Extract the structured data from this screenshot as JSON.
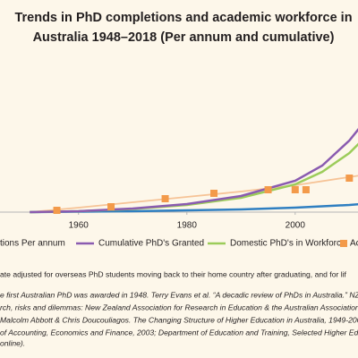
{
  "chart_data": {
    "type": "line",
    "title": [
      "Trends in PhD completions and academic workforce in",
      "Australia 1948–2018 (Per annum and cumulative)"
    ],
    "xlim": [
      1945.5,
      2011.6
    ],
    "xticks": [
      1960,
      1980,
      2000
    ],
    "ylim": [
      0,
      180
    ],
    "series": [
      {
        "name": "tions Per annum",
        "color": "#2f7fc1",
        "x": [
          1951,
          1960,
          1970,
          1980,
          1990,
          2000,
          2005,
          2010,
          2012
        ],
        "values": [
          0,
          0.5,
          1,
          2,
          3,
          5,
          6.5,
          8,
          9
        ]
      },
      {
        "name": "Cumulative PhD's Granted",
        "color": "#8a5bb0",
        "x": [
          1951,
          1960,
          1970,
          1980,
          1990,
          2000,
          2005,
          2010,
          2012
        ],
        "values": [
          0,
          1,
          4,
          9,
          18,
          35,
          52,
          80,
          95
        ]
      },
      {
        "name": "Domestic PhD's in Workforce",
        "color": "#9ccc5a",
        "x": [
          1951,
          1960,
          1970,
          1980,
          1990,
          2000,
          2005,
          2010,
          2012
        ],
        "values": [
          0,
          1,
          3.5,
          8,
          16,
          31,
          45,
          66,
          78
        ]
      },
      {
        "name": "Ac",
        "color": "#f39a4a",
        "marker": "square",
        "x": [
          1956,
          1966,
          1976,
          1985,
          1995,
          2000,
          2002,
          2010
        ],
        "values": [
          2,
          6,
          15,
          21,
          25,
          25,
          25,
          38
        ]
      },
      {
        "color": "#f6c396",
        "x": [
          1951,
          1960,
          1970,
          1980,
          1990,
          2000,
          2012
        ],
        "values": [
          0,
          5,
          11,
          17,
          23,
          30,
          41
        ]
      }
    ],
    "notes": [
      "ate adjusted for overseas PhD students moving back to their home country after graduating, and for lif",
      "e first Australian PhD was awarded in 1948. Terry Evans et al. “A decadic review of PhDs in Australia.” NZA",
      "rch, risks and dilemmas: New Zealand Association for Research in Education & the Australian Association",
      "Malcolm Abbott & Chris Doucouliagos. The Changing Structure of Higher Education in Australia, 1949-200",
      "of Accounting, Economics and Finance, 2003; Department of Education and Training, Selected Higher Edu",
      "online)."
    ]
  }
}
